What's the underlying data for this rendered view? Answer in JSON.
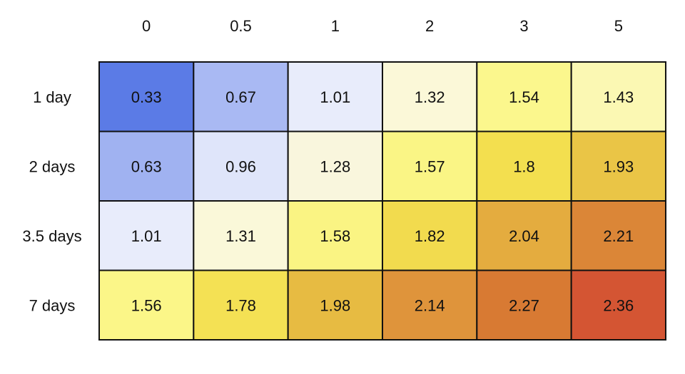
{
  "chart_data": {
    "type": "heatmap",
    "title": "",
    "xlabel": "",
    "ylabel": "",
    "x_categories": [
      "0",
      "0.5",
      "1",
      "2",
      "3",
      "5"
    ],
    "y_categories": [
      "1 day",
      "2 days",
      "3.5 days",
      "7 days"
    ],
    "values": [
      [
        0.33,
        0.67,
        1.01,
        1.32,
        1.54,
        1.43
      ],
      [
        0.63,
        0.96,
        1.28,
        1.57,
        1.8,
        1.93
      ],
      [
        1.01,
        1.31,
        1.58,
        1.82,
        2.04,
        2.21
      ],
      [
        1.56,
        1.78,
        1.98,
        2.14,
        2.27,
        2.36
      ]
    ],
    "value_labels": [
      [
        "0.33",
        "0.67",
        "1.01",
        "1.32",
        "1.54",
        "1.43"
      ],
      [
        "0.63",
        "0.96",
        "1.28",
        "1.57",
        "1.8",
        "1.93"
      ],
      [
        "1.01",
        "1.31",
        "1.58",
        "1.82",
        "2.04",
        "2.21"
      ],
      [
        "1.56",
        "1.78",
        "1.98",
        "2.14",
        "2.27",
        "2.36"
      ]
    ],
    "x_axis_position": "top",
    "legend": "none",
    "grid": true,
    "colorscale": [
      {
        "value": 0.33,
        "color": "#5b7be6"
      },
      {
        "value": 0.67,
        "color": "#a9b9f3"
      },
      {
        "value": 1.01,
        "color": "#e8ecfb"
      },
      {
        "value": 1.32,
        "color": "#fbf8d8"
      },
      {
        "value": 1.55,
        "color": "#fbf78a"
      },
      {
        "value": 1.8,
        "color": "#f3df4f"
      },
      {
        "value": 1.98,
        "color": "#e7bb42"
      },
      {
        "value": 2.14,
        "color": "#df943b"
      },
      {
        "value": 2.27,
        "color": "#d87a33"
      },
      {
        "value": 2.36,
        "color": "#d45533"
      }
    ],
    "border_color": "#111111"
  }
}
